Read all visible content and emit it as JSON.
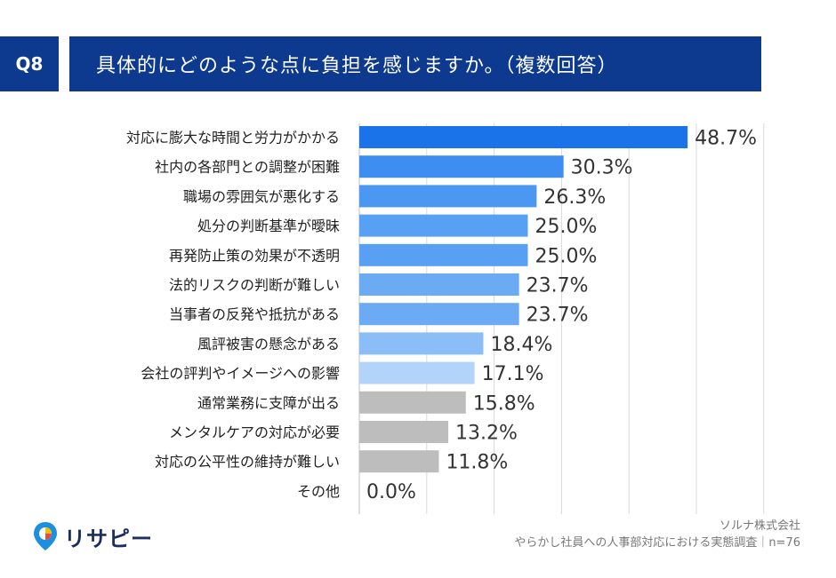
{
  "header": {
    "question_no": "Q8",
    "question_text": "具体的にどのような点に負担を感じますか。（複数回答）"
  },
  "chart_data": {
    "type": "bar",
    "orientation": "horizontal",
    "title": "具体的にどのような点に負担を感じますか。（複数回答）",
    "xlim": [
      0,
      60
    ],
    "grid": true,
    "categories": [
      "対応に膨大な時間と労力がかかる",
      "社内の各部門との調整が困難",
      "職場の雰囲気が悪化する",
      "処分の判断基準が曖昧",
      "再発防止策の効果が不透明",
      "法的リスクの判断が難しい",
      "当事者の反発や抵抗がある",
      "風評被害の懸念がある",
      "会社の評判やイメージへの影響",
      "通常業務に支障が出る",
      "メンタルケアの対応が必要",
      "対応の公平性の維持が難しい",
      "その他"
    ],
    "values": [
      48.7,
      30.3,
      26.3,
      25.0,
      25.0,
      23.7,
      23.7,
      18.4,
      17.1,
      15.8,
      13.2,
      11.8,
      0.0
    ],
    "value_labels": [
      "48.7%",
      "30.3%",
      "26.3%",
      "25.0%",
      "25.0%",
      "23.7%",
      "23.7%",
      "18.4%",
      "17.1%",
      "15.8%",
      "13.2%",
      "11.8%",
      "0.0%"
    ],
    "colors": [
      "#1a73e8",
      "#3d8ef0",
      "#4a98f2",
      "#58a0f3",
      "#58a0f3",
      "#6aabf4",
      "#6aabf4",
      "#8bbef6",
      "#b3d4fa",
      "#bdbdbd",
      "#bdbdbd",
      "#bdbdbd",
      "#bdbdbd"
    ]
  },
  "footer": {
    "logo_text": "リサピー",
    "company": "ソルナ株式会社",
    "survey": "やらかし社員への人事部対応における実態調査｜n=76"
  },
  "colors": {
    "header_bg": "#0d3a8f",
    "grid": "#d9d9d9"
  }
}
